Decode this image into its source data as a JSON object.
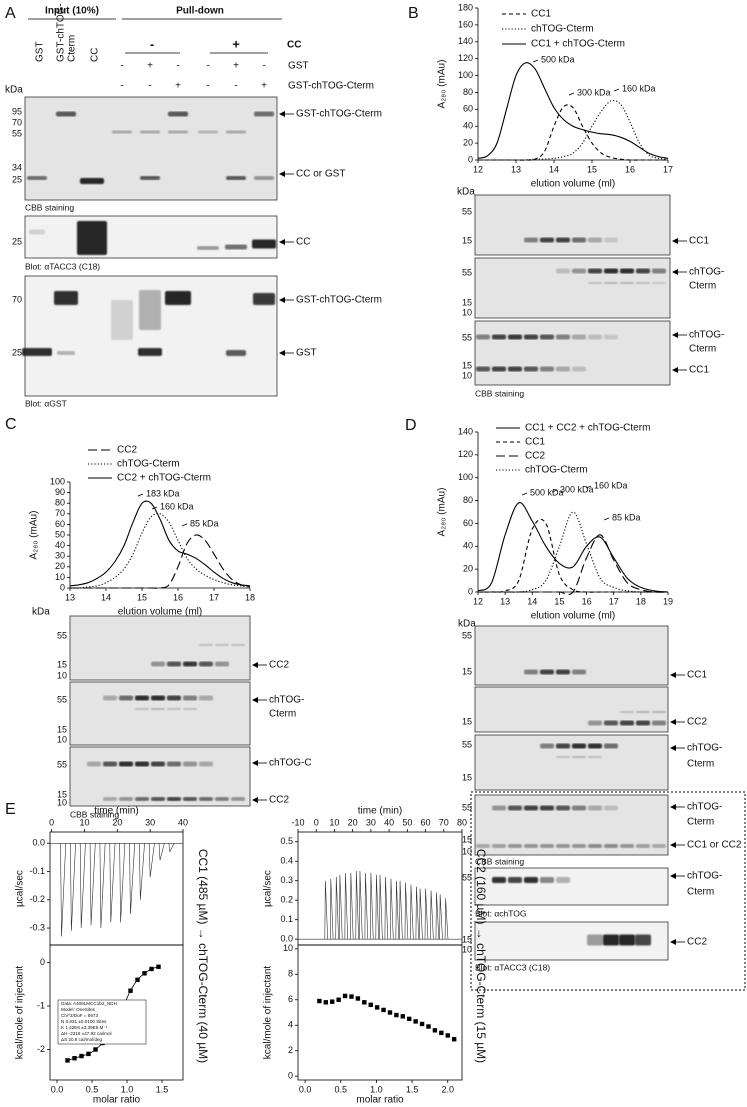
{
  "figure": {
    "panel_labels": [
      "A",
      "B",
      "C",
      "D",
      "E"
    ],
    "panel_a": {
      "headers": [
        "Input (10%)",
        "Pull-down"
      ],
      "lanes": [
        [
          "GST"
        ],
        [
          "GST-chTOG-",
          "Cterm"
        ],
        [
          "CC"
        ]
      ],
      "cc_groups": [
        "-",
        "+"
      ],
      "cc_label": "CC",
      "sign_rows": [
        {
          "label": "GST",
          "signs": [
            "-",
            "+",
            "-",
            "-",
            "+",
            "-"
          ]
        },
        {
          "label": "GST-chTOG-Cterm",
          "signs": [
            "-",
            "-",
            "+",
            "-",
            "-",
            "+"
          ]
        }
      ],
      "kda": "kDa",
      "gels": [
        {
          "markers": [
            "95",
            "70",
            "55",
            "34",
            "25"
          ],
          "labels": [
            [
              "GST-chTOG-Cterm"
            ],
            [
              "CC or GST"
            ]
          ],
          "caption": "CBB staining"
        },
        {
          "markers": [
            "25"
          ],
          "labels": [
            [
              "CC"
            ]
          ],
          "caption": "Blot: αTACC3 (C18)"
        },
        {
          "markers": [
            "70",
            "25"
          ],
          "labels": [
            [
              "GST-chTOG-Cterm"
            ],
            [
              "GST"
            ]
          ],
          "caption": "Blot: αGST"
        }
      ]
    },
    "panel_b": {
      "kda": "kDa",
      "gels": [
        {
          "markers": [
            "55",
            "15"
          ],
          "labels": [
            [
              "CC1"
            ]
          ]
        },
        {
          "markers": [
            "55",
            "15",
            "10"
          ],
          "labels": [
            [
              "chTOG-",
              "Cterm"
            ]
          ]
        },
        {
          "markers": [
            "55",
            "15",
            "10"
          ],
          "labels": [
            [
              "chTOG-",
              "Cterm"
            ],
            [
              "CC1"
            ]
          ],
          "caption": "CBB staining"
        }
      ]
    },
    "panel_c": {
      "kda": "kDa",
      "gels": [
        {
          "markers": [
            "55",
            "15",
            "10"
          ],
          "labels": [
            [
              "CC2"
            ]
          ]
        },
        {
          "markers": [
            "55",
            "15",
            "10"
          ],
          "labels": [
            [
              "chTOG-",
              "Cterm"
            ]
          ]
        },
        {
          "markers": [
            "55",
            "15",
            "10"
          ],
          "labels": [
            [
              "chTOG-C"
            ],
            [
              "CC2"
            ]
          ],
          "caption": "CBB staining"
        }
      ]
    },
    "panel_d": {
      "kda": "kDa",
      "gels": [
        {
          "markers": [
            "55",
            "15"
          ],
          "labels": [
            [
              "CC1"
            ]
          ]
        },
        {
          "markers": [
            "15"
          ],
          "labels": [
            [
              "CC2"
            ]
          ]
        },
        {
          "markers": [
            "55",
            "15"
          ],
          "labels": [
            [
              "chTOG-",
              "Cterm"
            ]
          ]
        },
        {
          "markers": [
            "55",
            "15",
            "10"
          ],
          "labels": [
            [
              "chTOG-",
              "Cterm"
            ],
            [
              "CC1 or CC2"
            ]
          ],
          "caption": "CBB staining"
        },
        {
          "markers": [
            "55"
          ],
          "labels": [
            [
              "chTOG-",
              "Cterm"
            ]
          ],
          "caption": "Blot: αchTOG"
        },
        {
          "markers": [
            "15",
            "10"
          ],
          "labels": [
            [
              "CC2"
            ]
          ],
          "caption": "Blot: αTACC3 (C18)"
        }
      ]
    }
  },
  "chart_data": [
    {
      "type": "line",
      "ylabel": "A₂₈₀ (mAu)",
      "xlabel": "elution volume (ml)",
      "x": [
        12,
        12.25,
        12.5,
        12.75,
        13,
        13.25,
        13.5,
        13.75,
        14,
        14.25,
        14.5,
        14.75,
        15,
        15.25,
        15.5,
        15.75,
        16,
        16.25,
        16.5,
        16.75,
        17
      ],
      "xlim": [
        12,
        17
      ],
      "xticks": [
        12,
        13,
        14,
        15,
        16,
        17
      ],
      "ylim": [
        0,
        180
      ],
      "yticks": [
        0,
        20,
        40,
        60,
        80,
        100,
        120,
        140,
        160,
        180
      ],
      "series": [
        {
          "name": "CC1",
          "color": "#000000",
          "dash": "dashed",
          "values": [
            0,
            0,
            0,
            0,
            0,
            0,
            1,
            10,
            40,
            63,
            62,
            40,
            20,
            8,
            3,
            1,
            0,
            0,
            0,
            0,
            0
          ]
        },
        {
          "name": "chTOG-Cterm",
          "color": "#000000",
          "dash": "dotted",
          "values": [
            0,
            0,
            0,
            0,
            0,
            0,
            1,
            1,
            2,
            4,
            8,
            20,
            40,
            58,
            70,
            66,
            45,
            20,
            6,
            2,
            1
          ]
        },
        {
          "name": "CC1 + chTOG-Cterm",
          "color": "#000000",
          "dash": "solid",
          "values": [
            2,
            5,
            20,
            60,
            100,
            115,
            108,
            85,
            62,
            48,
            40,
            36,
            33,
            31,
            30,
            27,
            22,
            15,
            8,
            4,
            2
          ]
        }
      ],
      "annotations": [
        "500 kDa",
        "300 kDa",
        "160 kDa"
      ]
    },
    {
      "type": "line",
      "ylabel": "A₂₈₀ (mAu)",
      "xlabel": "elution volume (ml)",
      "x": [
        13,
        13.25,
        13.5,
        13.75,
        14,
        14.25,
        14.5,
        14.75,
        15,
        15.25,
        15.5,
        15.75,
        16,
        16.25,
        16.5,
        16.75,
        17,
        17.25,
        17.5,
        17.75,
        18
      ],
      "xlim": [
        13,
        18
      ],
      "xticks": [
        13,
        14,
        15,
        16,
        17,
        18
      ],
      "ylim": [
        0,
        100
      ],
      "yticks": [
        0,
        10,
        20,
        30,
        40,
        50,
        60,
        70,
        80,
        90,
        100
      ],
      "series": [
        {
          "name": "CC2",
          "color": "#000000",
          "dash": "longdash",
          "values": [
            0,
            0,
            0,
            0,
            0,
            0,
            0,
            0,
            0,
            0,
            0,
            3,
            20,
            42,
            50,
            45,
            32,
            18,
            8,
            3,
            1
          ]
        },
        {
          "name": "chTOG-Cterm",
          "color": "#000000",
          "dash": "dotted",
          "values": [
            0,
            0,
            1,
            2,
            5,
            10,
            18,
            32,
            52,
            67,
            70,
            62,
            45,
            28,
            18,
            12,
            8,
            5,
            3,
            2,
            1
          ]
        },
        {
          "name": "CC2 + chTOG-Cterm",
          "color": "#000000",
          "dash": "solid",
          "values": [
            2,
            3,
            5,
            9,
            15,
            25,
            40,
            62,
            80,
            80,
            65,
            45,
            35,
            32,
            28,
            22,
            15,
            9,
            5,
            3,
            2
          ]
        }
      ],
      "annotations": [
        "183 kDa",
        "160 kDa",
        "85 kDa"
      ]
    },
    {
      "type": "line",
      "ylabel": "A₂₈₀ (mAu)",
      "xlabel": "elution volume (ml)",
      "x": [
        12,
        12.5,
        13,
        13.5,
        14,
        14.5,
        15,
        15.5,
        16,
        16.5,
        17,
        17.5,
        18,
        18.5,
        19
      ],
      "xlim": [
        12,
        19
      ],
      "xticks": [
        12,
        13,
        14,
        15,
        16,
        17,
        18,
        19
      ],
      "ylim": [
        0,
        140
      ],
      "yticks": [
        0,
        20,
        40,
        60,
        80,
        100,
        120,
        140
      ],
      "series": [
        {
          "name": "CC1 + CC2 + chTOG-Cterm",
          "color": "#000000",
          "dash": "solid",
          "values": [
            1,
            8,
            50,
            78,
            62,
            40,
            25,
            22,
            40,
            48,
            30,
            12,
            4,
            1,
            0
          ]
        },
        {
          "name": "CC1",
          "color": "#000000",
          "dash": "dashed",
          "values": [
            0,
            0,
            1,
            10,
            55,
            60,
            15,
            2,
            0,
            0,
            0,
            0,
            0,
            0,
            0
          ]
        },
        {
          "name": "CC2",
          "color": "#000000",
          "dash": "longdash",
          "values": [
            0,
            0,
            0,
            0,
            0,
            0,
            0,
            0,
            30,
            50,
            28,
            8,
            2,
            0,
            0
          ]
        },
        {
          "name": "chTOG-Cterm",
          "color": "#000000",
          "dash": "dotted",
          "values": [
            0,
            0,
            0,
            0,
            2,
            10,
            40,
            70,
            42,
            12,
            4,
            1,
            0,
            0,
            0
          ]
        }
      ],
      "annotations": [
        "500 kDa",
        "300 kDa",
        "160 kDa",
        "85 kDa"
      ]
    },
    {
      "type": "itc-raw",
      "xlabel": "time (min)",
      "ylabel": "µcal/sec",
      "xaxis_position": "top",
      "side_label": "CC1 (485 µM) → chTOG-Cterm (40 µM)",
      "color": "#333333",
      "x": [
        3,
        6,
        9,
        12,
        15,
        18,
        21,
        24,
        27,
        30,
        33,
        36
      ],
      "values": [
        -0.33,
        -0.31,
        -0.3,
        -0.29,
        -0.3,
        -0.28,
        -0.28,
        -0.25,
        -0.2,
        -0.12,
        -0.06,
        -0.03
      ],
      "xlim": [
        -0.5,
        40
      ],
      "xticks": [
        0,
        10,
        20,
        30,
        40
      ],
      "ylim": [
        -0.36,
        0.04
      ],
      "yticks": [
        {
          "value": 0,
          "label": "0.0"
        },
        -0.1,
        -0.2,
        -0.3
      ]
    },
    {
      "type": "scatter",
      "xlabel": "molar ratio",
      "ylabel": "kcal/mole of injectant",
      "fit_line": true,
      "color": "#000000",
      "fit_report": [
        "Data: A409LMCC1b2_NDH",
        "Model: OneSites",
        "Chi^2/DoF = 8973",
        "N    0.831   ±0.0100 Sites",
        "K    1.42E6  ±3.39E5 M⁻¹",
        "ΔH   -2316   ±47.92 cal/mol",
        "ΔS   20.6 cal/mol/deg"
      ],
      "x": [
        0.15,
        0.25,
        0.35,
        0.45,
        0.55,
        0.65,
        0.75,
        0.85,
        0.95,
        1.05,
        1.15,
        1.25,
        1.35,
        1.45
      ],
      "values": [
        -2.25,
        -2.2,
        -2.15,
        -2.1,
        -2.0,
        -1.85,
        -1.65,
        -1.35,
        -1.0,
        -0.65,
        -0.4,
        -0.25,
        -0.15,
        -0.1
      ],
      "xlim": [
        -0.1,
        1.8
      ],
      "xticks": [
        {
          "value": 0,
          "label": "0.0"
        },
        0.5,
        {
          "value": 1,
          "label": "1.0"
        },
        1.5
      ],
      "ylim": [
        -2.7,
        0.4
      ],
      "yticks": [
        0,
        -1,
        -2
      ]
    },
    {
      "type": "itc-raw",
      "xlabel": "time (min)",
      "ylabel": "µcal/sec",
      "xaxis_position": "top",
      "side_label": "CC2 (160 µM) → chTOG-Cterm (15 µM)",
      "color": "#333333",
      "x": [
        5,
        8,
        11,
        13,
        16,
        19,
        22,
        24,
        27,
        30,
        33,
        35,
        38,
        41,
        44,
        46,
        49,
        52,
        55,
        57,
        60,
        63,
        66,
        68,
        71
      ],
      "values": [
        0.3,
        0.31,
        0.32,
        0.33,
        0.34,
        0.34,
        0.35,
        0.35,
        0.34,
        0.34,
        0.33,
        0.33,
        0.32,
        0.31,
        0.3,
        0.3,
        0.29,
        0.28,
        0.27,
        0.26,
        0.26,
        0.25,
        0.24,
        0.23,
        0.21
      ],
      "xlim": [
        -10,
        80
      ],
      "xticks": [
        -10,
        0,
        10,
        20,
        30,
        40,
        50,
        60,
        70,
        80
      ],
      "ylim": [
        -0.03,
        0.55
      ],
      "yticks": [
        {
          "value": 0,
          "label": "0.0"
        },
        0.1,
        0.2,
        0.3,
        0.4,
        0.5
      ]
    },
    {
      "type": "scatter",
      "xlabel": "molar ratio",
      "ylabel": "kcal/mole of injectant",
      "fit_line": false,
      "color": "#000000",
      "x": [
        0.2,
        0.29,
        0.38,
        0.47,
        0.56,
        0.65,
        0.74,
        0.83,
        0.92,
        1.01,
        1.1,
        1.19,
        1.28,
        1.37,
        1.46,
        1.55,
        1.64,
        1.73,
        1.82,
        1.91,
        2.0,
        2.09
      ],
      "values": [
        5.9,
        5.8,
        5.85,
        6.0,
        6.3,
        6.25,
        6.1,
        5.8,
        5.6,
        5.4,
        5.2,
        5.0,
        4.8,
        4.7,
        4.5,
        4.3,
        4.1,
        3.9,
        3.6,
        3.4,
        3.2,
        2.9
      ],
      "xlim": [
        -0.1,
        2.2
      ],
      "xticks": [
        {
          "value": 0,
          "label": "0.0"
        },
        0.5,
        {
          "value": 1,
          "label": "1.0"
        },
        1.5,
        {
          "value": 2,
          "label": "2.0"
        }
      ],
      "ylim": [
        -0.3,
        10.3
      ],
      "yticks": [
        0,
        2,
        4,
        6,
        8,
        10
      ]
    }
  ]
}
